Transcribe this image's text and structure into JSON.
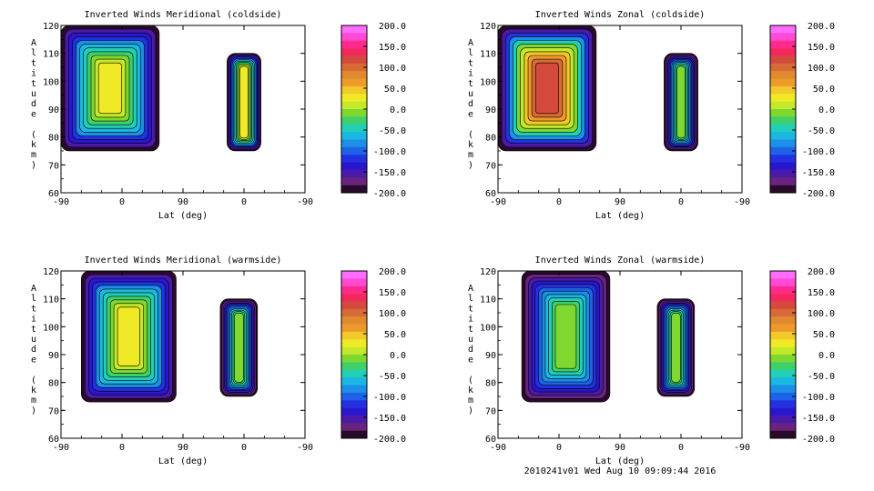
{
  "footer": "2010241v01 Wed Aug 10 09:09:44 2016",
  "colorbar": {
    "labels": [
      "200.0",
      "150.0",
      "100.0",
      "50.0",
      "0.0",
      "-50.0",
      "-100.0",
      "-150.0",
      "-200.0"
    ],
    "colors_top_to_bottom": [
      "#ff6cff",
      "#ff4ad6",
      "#ff2a8c",
      "#f2285e",
      "#d44a3c",
      "#d86a36",
      "#e08a2e",
      "#ee9a2a",
      "#f2c82a",
      "#f0ea26",
      "#c4e82a",
      "#7ed830",
      "#40d06a",
      "#22cfb6",
      "#1ab8e0",
      "#1c90e6",
      "#1e62e8",
      "#2232e0",
      "#2a16cc",
      "#4a1aa8",
      "#6a2480",
      "#2a0a2a"
    ]
  },
  "chart_data": [
    {
      "type": "heatmap",
      "title": "Inverted Winds Meridional (coldside)",
      "xlabel": "Lat (deg)",
      "ylabel": "Altitude (km)",
      "x_ticks": [
        "-90",
        "0",
        "90",
        "0",
        "-90"
      ],
      "y_ticks": [
        60,
        70,
        80,
        90,
        100,
        110,
        120
      ],
      "ylim": [
        60,
        120
      ],
      "zlim": [
        -200,
        200
      ],
      "regions": [
        {
          "x_range": [
            -90,
            55
          ],
          "alt_range": [
            75,
            120
          ],
          "value_range": [
            -200,
            50
          ]
        },
        {
          "x_range": [
            155,
            205
          ],
          "alt_range": [
            75,
            110
          ],
          "value_range": [
            -200,
            50
          ]
        }
      ]
    },
    {
      "type": "heatmap",
      "title": "Inverted Winds Zonal (coldside)",
      "xlabel": "Lat (deg)",
      "ylabel": "Altitude (km)",
      "x_ticks": [
        "-90",
        "0",
        "90",
        "0",
        "-90"
      ],
      "y_ticks": [
        60,
        70,
        80,
        90,
        100,
        110,
        120
      ],
      "ylim": [
        60,
        120
      ],
      "zlim": [
        -200,
        200
      ],
      "regions": [
        {
          "x_range": [
            -90,
            55
          ],
          "alt_range": [
            75,
            120
          ],
          "value_range": [
            -200,
            150
          ]
        },
        {
          "x_range": [
            155,
            205
          ],
          "alt_range": [
            75,
            110
          ],
          "value_range": [
            -200,
            0
          ]
        }
      ]
    },
    {
      "type": "heatmap",
      "title": "Inverted Winds Meridional (warmside)",
      "xlabel": "Lat (deg)",
      "ylabel": "Altitude (km)",
      "x_ticks": [
        "-90",
        "0",
        "90",
        "0",
        "-90"
      ],
      "y_ticks": [
        60,
        70,
        80,
        90,
        100,
        110,
        120
      ],
      "ylim": [
        60,
        120
      ],
      "zlim": [
        -200,
        200
      ],
      "regions": [
        {
          "x_range": [
            -60,
            80
          ],
          "alt_range": [
            73,
            120
          ],
          "value_range": [
            -200,
            50
          ]
        },
        {
          "x_range": [
            145,
            200
          ],
          "alt_range": [
            75,
            110
          ],
          "value_range": [
            -200,
            0
          ]
        }
      ]
    },
    {
      "type": "heatmap",
      "title": "Inverted Winds Zonal (warmside)",
      "xlabel": "Lat (deg)",
      "ylabel": "Altitude (km)",
      "x_ticks": [
        "-90",
        "0",
        "90",
        "0",
        "-90"
      ],
      "y_ticks": [
        60,
        70,
        80,
        90,
        100,
        110,
        120
      ],
      "ylim": [
        60,
        120
      ],
      "zlim": [
        -200,
        200
      ],
      "regions": [
        {
          "x_range": [
            -55,
            75
          ],
          "alt_range": [
            73,
            120
          ],
          "value_range": [
            -200,
            0
          ]
        },
        {
          "x_range": [
            145,
            200
          ],
          "alt_range": [
            75,
            110
          ],
          "value_range": [
            -200,
            0
          ]
        }
      ]
    }
  ]
}
